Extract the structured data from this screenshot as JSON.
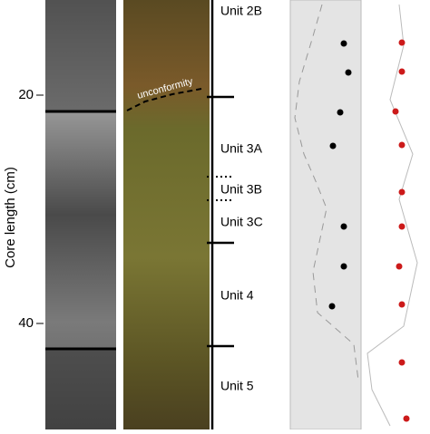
{
  "axis": {
    "label": "Core length (cm)",
    "ticks": [
      20,
      40
    ]
  },
  "annotation": "unconformity",
  "units": [
    "Unit 2B",
    "Unit 3A",
    "Unit 3B",
    "Unit 3C",
    "Unit 4",
    "Unit 5"
  ]
}
